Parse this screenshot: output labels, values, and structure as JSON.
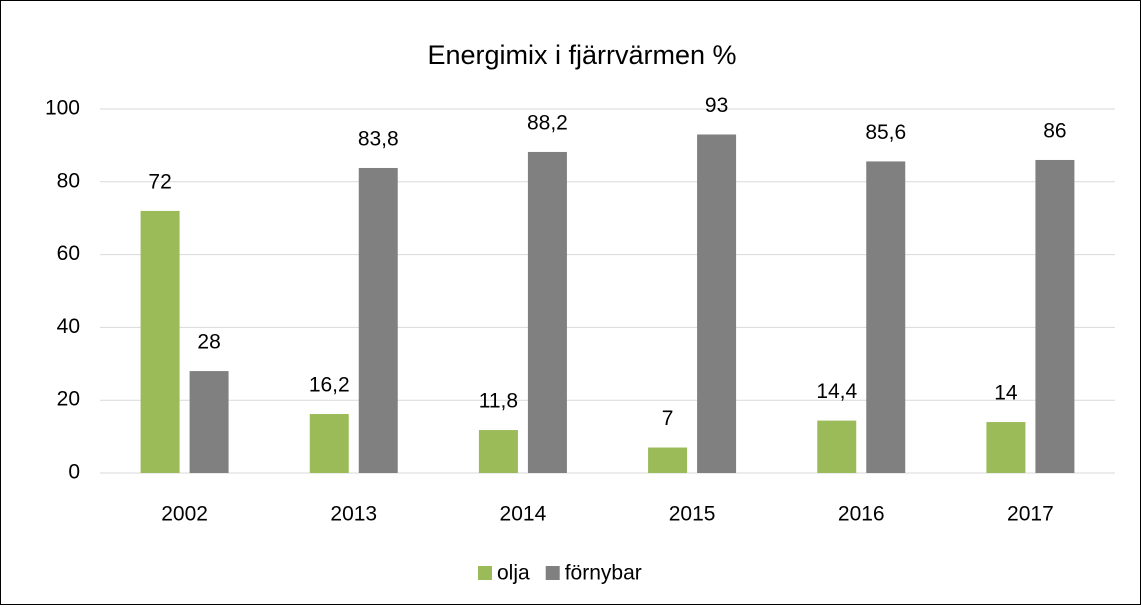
{
  "chart_data": {
    "type": "bar",
    "title": "Energimix i fjärrvärmen %",
    "categories": [
      "2002",
      "2013",
      "2014",
      "2015",
      "2016",
      "2017"
    ],
    "series": [
      {
        "name": "olja",
        "color": "#9bbb59",
        "values": [
          72,
          16.2,
          11.8,
          7,
          14.4,
          14
        ],
        "value_labels": [
          "72",
          "16,2",
          "11,8",
          "7",
          "14,4",
          "14"
        ]
      },
      {
        "name": "förnybar",
        "color": "#808080",
        "values": [
          28,
          83.8,
          88.2,
          93,
          85.6,
          86
        ],
        "value_labels": [
          "28",
          "83,8",
          "88,2",
          "93",
          "85,6",
          "86"
        ]
      }
    ],
    "ylim": [
      0,
      100
    ],
    "yticks": [
      0,
      20,
      40,
      60,
      80,
      100
    ],
    "grid": true,
    "legend": "bottom"
  }
}
